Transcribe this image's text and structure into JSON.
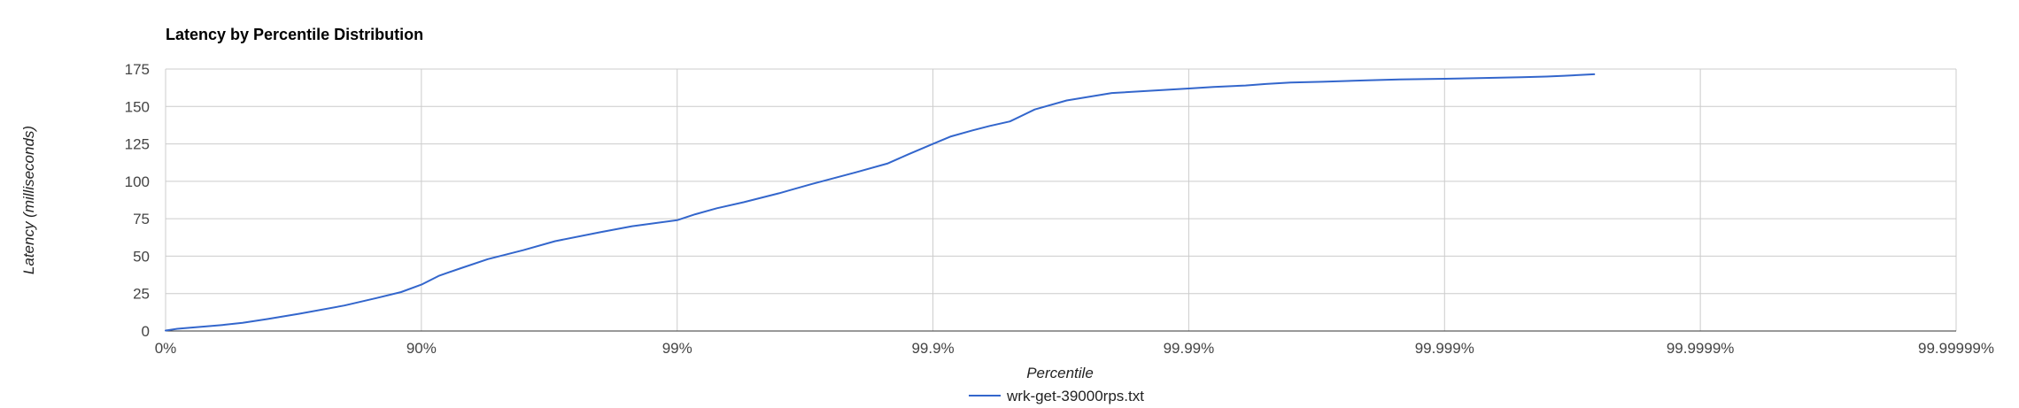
{
  "chart_data": {
    "type": "line",
    "title": "Latency by Percentile Distribution",
    "xlabel": "Percentile",
    "ylabel": "Latency (milliseconds)",
    "x_scale": "log-reciprocal (percentile nines)",
    "x_tick_labels": [
      "0%",
      "90%",
      "99%",
      "99.9%",
      "99.99%",
      "99.999%",
      "99.9999%",
      "99.99999%"
    ],
    "x_tick_values": [
      0,
      90,
      99,
      99.9,
      99.99,
      99.999,
      99.9999,
      99.99999
    ],
    "xlim": [
      0,
      99.99999
    ],
    "ylim": [
      0,
      175
    ],
    "y_ticks": [
      0,
      25,
      50,
      75,
      100,
      125,
      150,
      175
    ],
    "grid": true,
    "legend_position": "bottom",
    "colors": {
      "series": "#3366cc",
      "grid": "#cccccc"
    },
    "series": [
      {
        "name": "wrk-get-39000rps.txt",
        "color": "#3366cc",
        "x": [
          0,
          10,
          20,
          30,
          40,
          50,
          60,
          70,
          80,
          85,
          88,
          90,
          91.5,
          93,
          94.5,
          96,
          97,
          98,
          98.5,
          99,
          99.15,
          99.3,
          99.45,
          99.6,
          99.7,
          99.8,
          99.85,
          99.875,
          99.9,
          99.915,
          99.93,
          99.94,
          99.95,
          99.96,
          99.97,
          99.98,
          99.99,
          99.992,
          99.994,
          99.995,
          99.996,
          99.997,
          99.998,
          99.9985,
          99.999,
          99.9993,
          99.9995,
          99.9996,
          99.99966,
          99.99974
        ],
        "y": [
          0.3,
          1.5,
          2.2,
          3,
          4,
          5.5,
          8,
          11.5,
          17,
          22,
          26,
          31,
          37,
          42,
          48,
          54,
          60,
          66,
          70,
          74,
          78,
          82,
          86,
          92,
          98,
          106,
          112,
          118,
          125,
          130,
          134,
          137,
          140,
          148,
          154,
          159,
          162,
          163,
          164,
          165,
          166,
          166.5,
          167.5,
          168,
          168.5,
          169,
          169.5,
          170,
          170.5,
          171.5
        ]
      }
    ]
  }
}
